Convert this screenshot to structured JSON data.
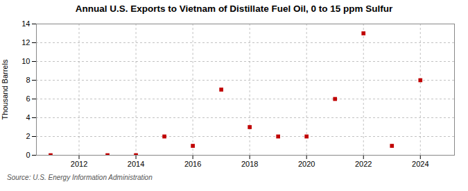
{
  "chart_data": {
    "type": "scatter",
    "title": "Annual U.S. Exports to Vietnam of Distillate Fuel Oil, 0 to 15 ppm Sulfur",
    "ylabel": "Thousand Barrels",
    "source": "Source: U.S. Energy Information Administration",
    "x": [
      2011,
      2013,
      2014,
      2015,
      2016,
      2017,
      2018,
      2019,
      2020,
      2021,
      2022,
      2023,
      2024
    ],
    "values": [
      0,
      0,
      0,
      2,
      1,
      7,
      3,
      2,
      2,
      6,
      13,
      1,
      8
    ],
    "color": "#c00000",
    "marker": "square",
    "xlim": [
      2010.5,
      2025.2
    ],
    "xticks": [
      2012,
      2014,
      2016,
      2018,
      2020,
      2022,
      2024
    ],
    "ylim": [
      0,
      14
    ],
    "yticks": [
      0,
      2,
      4,
      6,
      8,
      10,
      12,
      14
    ],
    "grid": true
  }
}
